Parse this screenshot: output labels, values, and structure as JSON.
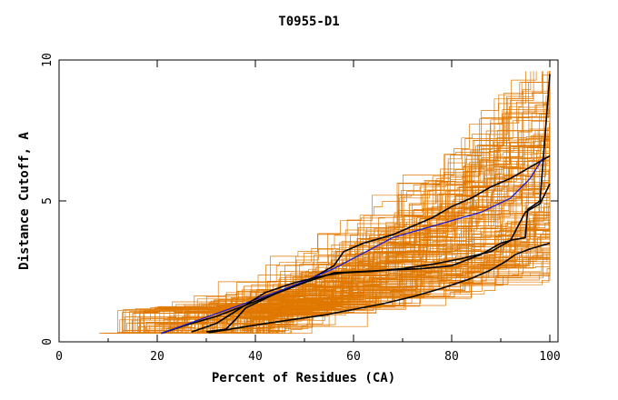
{
  "chart_data": {
    "type": "line",
    "title": "T0955-D1",
    "xlabel": "Percent of Residues (CA)",
    "ylabel": "Distance Cutoff, A",
    "xlim": [
      0,
      100
    ],
    "ylim": [
      0,
      10
    ],
    "xticks": [
      "0",
      "20",
      "40",
      "60",
      "80",
      "100"
    ],
    "yticks": [
      "0",
      "5",
      "10"
    ],
    "grid": false,
    "colors": {
      "background_models": "#e07800",
      "highlight_models": "#000000",
      "reference_model": "#1a1ad0"
    },
    "series": [
      {
        "color": "#000000",
        "x": [
          20.8,
          26,
          32,
          38,
          44,
          50,
          56,
          58,
          62,
          68,
          72,
          76,
          80,
          84,
          88,
          92,
          96,
          100
        ],
        "y": [
          0.3,
          0.6,
          0.9,
          1.3,
          1.7,
          2.1,
          2.7,
          3.2,
          3.5,
          3.8,
          4.1,
          4.4,
          4.8,
          5.1,
          5.5,
          5.8,
          6.2,
          6.6
        ]
      },
      {
        "color": "#1a1ad0",
        "x": [
          20.8,
          28,
          36,
          44,
          50,
          56,
          62,
          68,
          74,
          80,
          86,
          92,
          96,
          98.5
        ],
        "y": [
          0.3,
          0.75,
          1.25,
          1.75,
          2.15,
          2.6,
          3.15,
          3.7,
          4.0,
          4.3,
          4.6,
          5.1,
          5.8,
          6.5
        ]
      },
      {
        "color": "#000000",
        "x": [
          27,
          32,
          37,
          42,
          48,
          54,
          58,
          64,
          70,
          76,
          82,
          88,
          92,
          95,
          98,
          100
        ],
        "y": [
          0.35,
          0.65,
          1.2,
          1.75,
          2.1,
          2.35,
          2.45,
          2.5,
          2.6,
          2.75,
          2.95,
          3.2,
          3.6,
          4.6,
          4.9,
          5.6
        ]
      },
      {
        "color": "#000000",
        "x": [
          30,
          34,
          36,
          38,
          44,
          50,
          56,
          62,
          68,
          74,
          80,
          86,
          90,
          92,
          95,
          95.5,
          98,
          100
        ],
        "y": [
          0.35,
          0.45,
          0.8,
          1.2,
          1.7,
          2.1,
          2.45,
          2.5,
          2.55,
          2.6,
          2.7,
          3.1,
          3.5,
          3.6,
          3.7,
          4.7,
          5.0,
          9.5
        ]
      },
      {
        "color": "#000000",
        "x": [
          30.5,
          36,
          42,
          48,
          54,
          60,
          66,
          72,
          78,
          84,
          88,
          91,
          93,
          96,
          100
        ],
        "y": [
          0.33,
          0.48,
          0.65,
          0.8,
          0.95,
          1.15,
          1.35,
          1.6,
          1.9,
          2.25,
          2.55,
          2.85,
          3.1,
          3.3,
          3.5
        ]
      }
    ]
  }
}
